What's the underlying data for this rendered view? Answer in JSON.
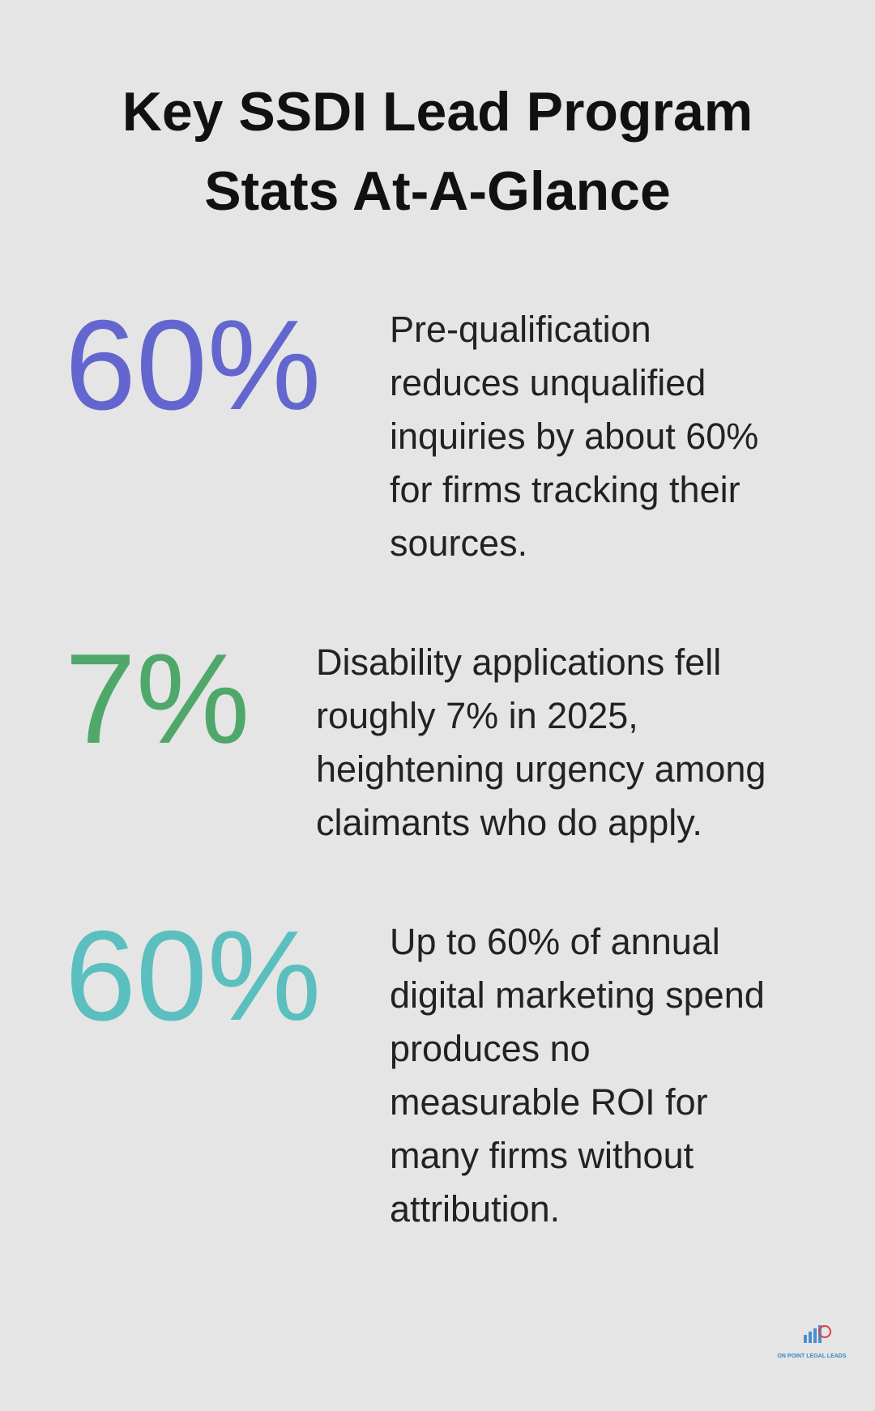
{
  "header": {
    "title": [
      "Key SSDI Lead Program",
      "Stats At-A-Glance"
    ]
  },
  "stats": [
    {
      "value": "60%",
      "color": "#6466cf",
      "lines": [
        "Pre-qualification",
        "reduces unqualified",
        "inquiries by about 60%",
        "for firms tracking their",
        "sources."
      ]
    },
    {
      "value": "7%",
      "color": "#4fa86a",
      "lines": [
        "Disability applications fell",
        "roughly 7% in 2025,",
        "heightening urgency among",
        "claimants who do apply."
      ]
    },
    {
      "value": "60%",
      "color": "#5bbfc0",
      "lines": [
        "Up to 60% of annual",
        "digital marketing spend",
        "produces no",
        "measurable ROI for",
        "many firms without",
        "attribution."
      ]
    }
  ],
  "logo": {
    "text": "ON POINT LEGAL LEADS"
  }
}
